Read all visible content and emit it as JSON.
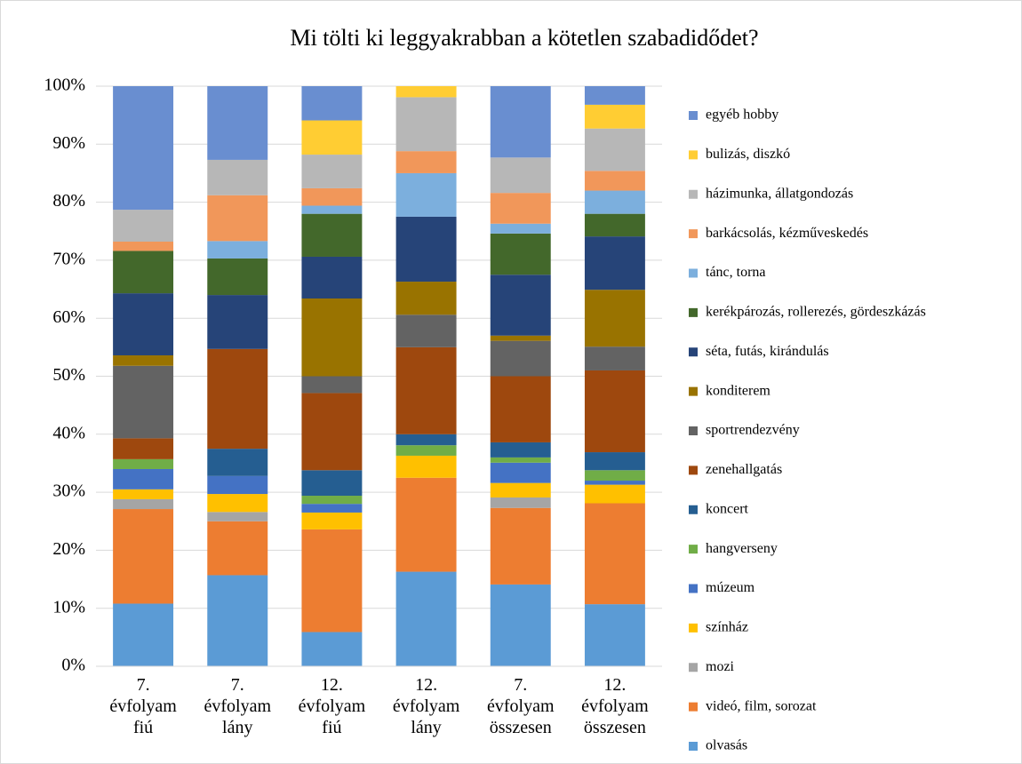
{
  "chart_data": {
    "type": "stacked_bar",
    "title": "Mi tölti ki leggyakrabban a kötetlen szabadidődet?",
    "categories": [
      "7. évfolyam fiú",
      "7. évfolyam lány",
      "12. évfolyam fiú",
      "12. évfolyam lány",
      "7. évfolyam összesen",
      "12. évfolyam összesen"
    ],
    "series": [
      {
        "name": "olvasás",
        "color": "#5b9bd5",
        "values": [
          10.8,
          15.7,
          5.9,
          16.3,
          14.1,
          10.7
        ]
      },
      {
        "name": "videó, film, sorozat",
        "color": "#ed7d31",
        "values": [
          16.3,
          9.3,
          17.7,
          16.2,
          13.2,
          17.4
        ]
      },
      {
        "name": "mozi",
        "color": "#a5a5a5",
        "values": [
          1.7,
          1.6,
          0,
          0,
          1.8,
          0
        ]
      },
      {
        "name": "színház",
        "color": "#ffc000",
        "values": [
          1.7,
          3.1,
          2.9,
          3.8,
          2.5,
          3.2
        ]
      },
      {
        "name": "múzeum",
        "color": "#4472c4",
        "values": [
          3.5,
          3.1,
          1.5,
          0,
          3.5,
          0.7
        ]
      },
      {
        "name": "hangverseny",
        "color": "#70ad47",
        "values": [
          1.7,
          0,
          1.4,
          1.8,
          0.9,
          1.8
        ]
      },
      {
        "name": "koncert",
        "color": "#255e91",
        "values": [
          0,
          4.7,
          4.4,
          1.9,
          2.6,
          3.1
        ]
      },
      {
        "name": "zenehallgatás",
        "color": "#9e480e",
        "values": [
          3.6,
          17.2,
          13.3,
          15,
          11.4,
          14.1
        ]
      },
      {
        "name": "sportrendezvény",
        "color": "#636363",
        "values": [
          12.5,
          0,
          2.9,
          5.6,
          6.1,
          4.1
        ]
      },
      {
        "name": "konditerem",
        "color": "#997300",
        "values": [
          1.8,
          0,
          13.4,
          5.7,
          0.9,
          9.8
        ]
      },
      {
        "name": "séta, futás, kirándulás",
        "color": "#264478",
        "values": [
          10.7,
          9.3,
          7.2,
          11.2,
          10.5,
          9.2
        ]
      },
      {
        "name": "kerékpározás, rollerezés, gördeszkázás",
        "color": "#43682b",
        "values": [
          7.3,
          6.3,
          7.4,
          0,
          7.1,
          3.9
        ]
      },
      {
        "name": "tánc, torna",
        "color": "#7cafdd",
        "values": [
          0,
          3.0,
          1.4,
          7.5,
          1.7,
          4.0
        ]
      },
      {
        "name": "barkácsolás, kézművеskedés",
        "color": "#f1975a",
        "values": [
          1.6,
          7.9,
          3.0,
          3.8,
          5.3,
          3.4
        ]
      },
      {
        "name": "házimunka, állatgondozás",
        "color": "#b7b7b7",
        "values": [
          5.5,
          6.1,
          5.8,
          9.3,
          6.1,
          7.3
        ]
      },
      {
        "name": "bulizás, diszkó",
        "color": "#ffcd33",
        "values": [
          0,
          0,
          5.9,
          1.9,
          0,
          4.1
        ]
      },
      {
        "name": "egyéb hobby",
        "color": "#698ed0",
        "values": [
          21.3,
          12.7,
          5.9,
          0,
          12.3,
          3.2
        ]
      }
    ],
    "ylim": [
      0,
      100
    ],
    "yticks": [
      {
        "value": 0,
        "label": "0%"
      },
      {
        "value": 10,
        "label": "10%"
      },
      {
        "value": 20,
        "label": "20%"
      },
      {
        "value": 30,
        "label": "30%"
      },
      {
        "value": 40,
        "label": "40%"
      },
      {
        "value": 50,
        "label": "50%"
      },
      {
        "value": 60,
        "label": "60%"
      },
      {
        "value": 70,
        "label": "70%"
      },
      {
        "value": 80,
        "label": "80%"
      },
      {
        "value": 90,
        "label": "90%"
      },
      {
        "value": 100,
        "label": "100%"
      }
    ],
    "grid": true,
    "legend": "right"
  }
}
